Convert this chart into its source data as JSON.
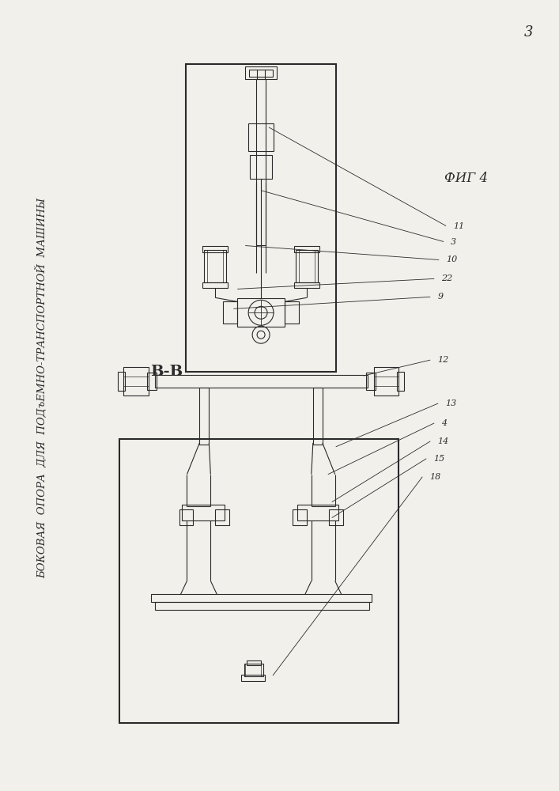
{
  "bg_color": "#f2f0eb",
  "line_color": "#2a2a2a",
  "title_text": "БОКОВАЯ  ОПОРА  ДЛЯ  ПОДъЕМНО-ТРАНСПОРТНОЙ  МАШИНЫ",
  "section_label": "В-В",
  "fig_label": "ФИГ 4",
  "page_number": "3",
  "lw_outer": 1.5,
  "lw_inner": 0.8,
  "lw_leader": 0.6
}
